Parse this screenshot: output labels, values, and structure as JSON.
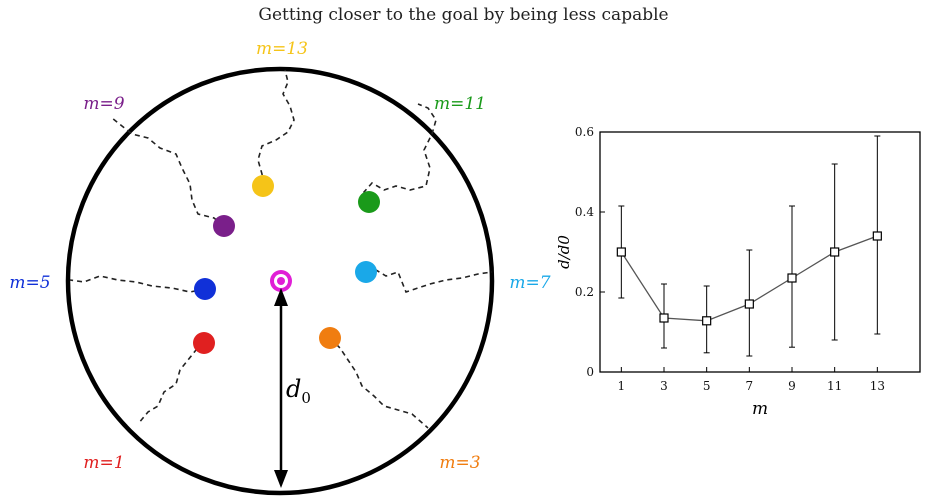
{
  "title": "Getting closer to the goal by being less capable",
  "diagram": {
    "distance_label": "d",
    "distance_sub": "0",
    "goal_color": "#e01fd6",
    "agents": [
      {
        "name": "m=1",
        "color": "#e02020",
        "label_color": "#e02020"
      },
      {
        "name": "m=3",
        "color": "#f07d10",
        "label_color": "#f07d10"
      },
      {
        "name": "m=5",
        "color": "#1030d8",
        "label_color": "#1030d8"
      },
      {
        "name": "m=7",
        "color": "#1aa8e8",
        "label_color": "#1aa8e8"
      },
      {
        "name": "m=9",
        "color": "#7a1f8a",
        "label_color": "#7a1f8a"
      },
      {
        "name": "m=11",
        "color": "#1a9a1a",
        "label_color": "#1a9a1a"
      },
      {
        "name": "m=13",
        "color": "#f5c418",
        "label_color": "#f5c418"
      }
    ]
  },
  "chart_data": {
    "type": "line",
    "xlabel": "m",
    "ylabel": "d/d0",
    "x": [
      1,
      3,
      5,
      7,
      9,
      11,
      13
    ],
    "xlim": [
      0,
      15
    ],
    "ylim": [
      0,
      0.6
    ],
    "yticks": [
      0,
      0.2,
      0.4,
      0.6
    ],
    "yticklabels": [
      "0",
      "0.2",
      "0.4",
      "0.6"
    ],
    "series": [
      {
        "values": [
          0.3,
          0.135,
          0.128,
          0.17,
          0.235,
          0.3,
          0.34
        ],
        "err_low": [
          0.185,
          0.06,
          0.048,
          0.04,
          0.062,
          0.08,
          0.095
        ],
        "err_high": [
          0.415,
          0.22,
          0.215,
          0.305,
          0.415,
          0.52,
          0.59
        ],
        "marker": "square",
        "color": "#555555"
      }
    ],
    "grid": false
  }
}
